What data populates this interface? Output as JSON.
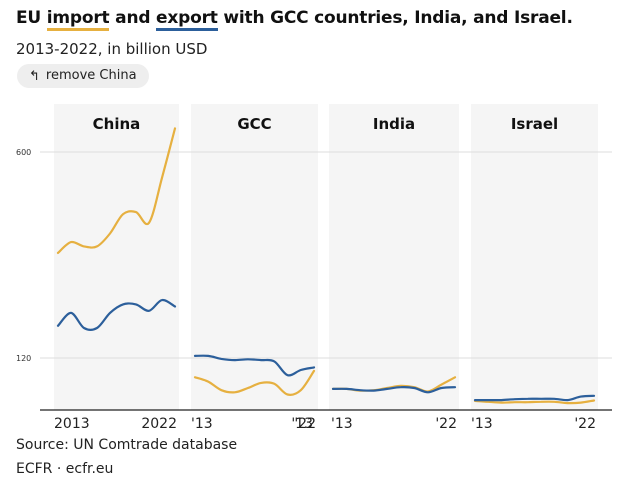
{
  "header": {
    "title_pre": "EU ",
    "title_import": "import",
    "title_mid": " and ",
    "title_export": "export",
    "title_post": " with GCC countries, India, and Israel.",
    "subtitle": "2013-2022, in billion USD",
    "remove_button": "remove China",
    "remove_icon": "return-arrow-icon"
  },
  "footer": {
    "source": "Source: UN Comtrade database",
    "credit": "ECFR · ecfr.eu"
  },
  "colors": {
    "import": "#e6b040",
    "export": "#2c5f9b",
    "panel_bg": "#f5f5f5",
    "grid": "#dddddd"
  },
  "chart_data": {
    "type": "line",
    "yticks": [
      120,
      600
    ],
    "ylim": [
      0,
      700
    ],
    "x": [
      2013,
      2014,
      2015,
      2016,
      2017,
      2018,
      2019,
      2020,
      2021,
      2022
    ],
    "panels": [
      {
        "name": "China",
        "x_tick_labels": [
          "2013",
          "2022"
        ],
        "series": [
          {
            "name": "import",
            "values": [
              365,
              390,
              380,
              380,
              410,
              455,
              460,
              435,
              540,
              655
            ]
          },
          {
            "name": "export",
            "values": [
              195,
              225,
              190,
              190,
              225,
              245,
              245,
              230,
              255,
              240
            ]
          }
        ]
      },
      {
        "name": "GCC",
        "x_tick_labels": [
          "'13",
          "'22"
        ],
        "series": [
          {
            "name": "import",
            "values": [
              75,
              65,
              45,
              40,
              50,
              62,
              60,
              35,
              45,
              90
            ]
          },
          {
            "name": "export",
            "values": [
              125,
              125,
              118,
              115,
              117,
              115,
              112,
              80,
              92,
              98
            ]
          }
        ]
      },
      {
        "name": "India",
        "x_tick_labels": [
          "'13",
          "'13",
          "'22"
        ],
        "series": [
          {
            "name": "import",
            "values": [
              48,
              48,
              44,
              45,
              50,
              55,
              52,
              42,
              58,
              75
            ]
          },
          {
            "name": "export",
            "values": [
              48,
              48,
              45,
              44,
              48,
              52,
              50,
              40,
              50,
              52
            ]
          }
        ]
      },
      {
        "name": "Israel",
        "x_tick_labels": [
          "'13",
          "'22"
        ],
        "series": [
          {
            "name": "import",
            "values": [
              20,
              18,
              16,
              17,
              17,
              18,
              18,
              15,
              16,
              21
            ]
          },
          {
            "name": "export",
            "values": [
              22,
              22,
              22,
              24,
              25,
              25,
              25,
              22,
              30,
              32
            ]
          }
        ]
      }
    ]
  }
}
